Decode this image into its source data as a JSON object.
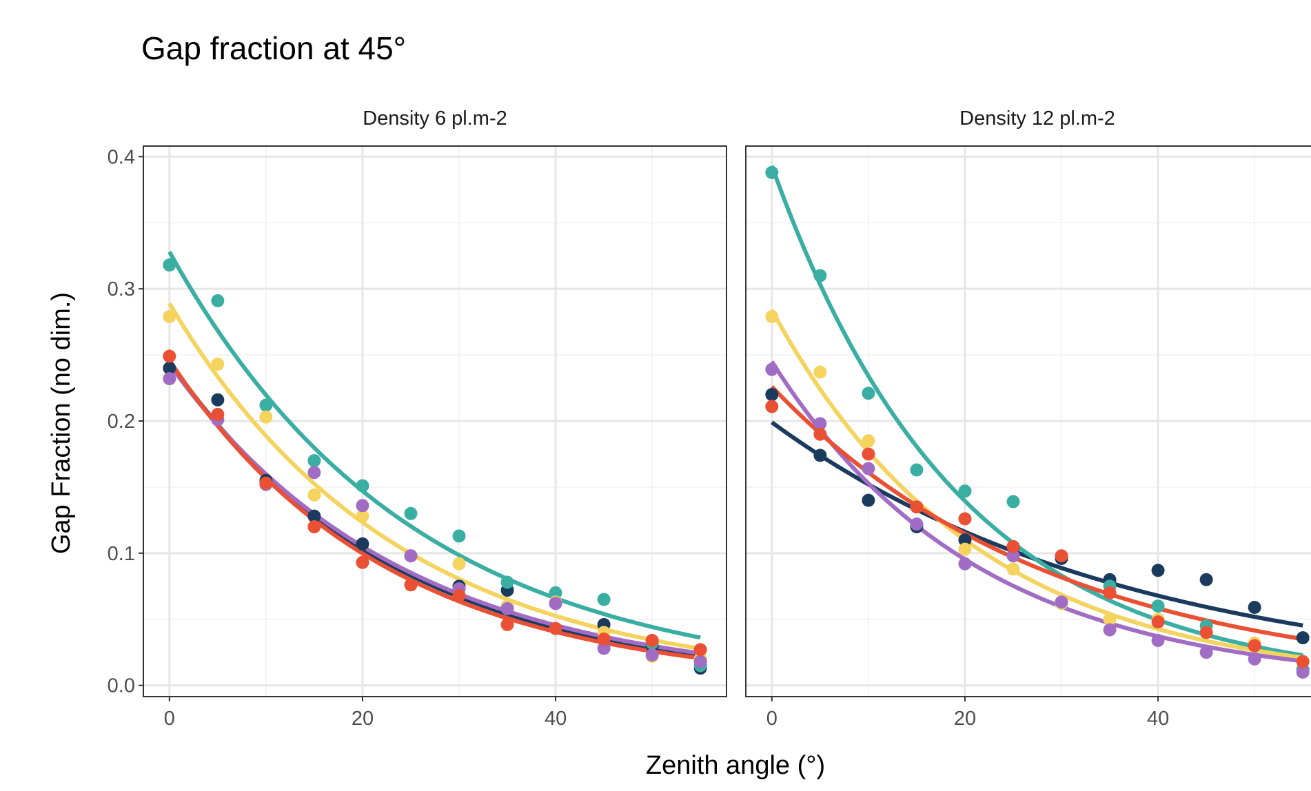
{
  "chart_data": {
    "type": "scatter",
    "title": "Gap fraction at 45°",
    "xlabel": "Zenith angle (°)",
    "ylabel": "Gap Fraction (no dim.)",
    "xlim": [
      -2.7,
      57.7
    ],
    "ylim": [
      -0.0085,
      0.408
    ],
    "x_ticks": [
      "0",
      "20",
      "40"
    ],
    "x_tick_values": [
      0,
      20,
      40
    ],
    "y_ticks": [
      "0.0",
      "0.1",
      "0.2",
      "0.3",
      "0.4"
    ],
    "y_tick_values": [
      0,
      0.1,
      0.2,
      0.3,
      0.4
    ],
    "grid": true,
    "legend": "none",
    "colors": {
      "navy": "#1a3a5e",
      "teal": "#3aaea3",
      "yellow": "#f4d35e",
      "purple": "#a06cc4",
      "red": "#ea5034"
    },
    "panels": [
      {
        "label": "Density 6 pl.m-2",
        "series": [
          {
            "color": "#1a3a5e",
            "points": [
              [
                0,
                0.24
              ],
              [
                5,
                0.216
              ],
              [
                10,
                0.155
              ],
              [
                15,
                0.128
              ],
              [
                20,
                0.107
              ],
              [
                25,
                0.098
              ],
              [
                30,
                0.075
              ],
              [
                35,
                0.072
              ],
              [
                40,
                0.062
              ],
              [
                45,
                0.046
              ],
              [
                50,
                0.03
              ],
              [
                55,
                0.013
              ]
            ],
            "fit": {
              "a": 0.245,
              "b": 0.0432
            }
          },
          {
            "color": "#3aaea3",
            "points": [
              [
                0,
                0.318
              ],
              [
                5,
                0.291
              ],
              [
                10,
                0.212
              ],
              [
                15,
                0.17
              ],
              [
                20,
                0.151
              ],
              [
                25,
                0.13
              ],
              [
                30,
                0.113
              ],
              [
                35,
                0.078
              ],
              [
                40,
                0.07
              ],
              [
                45,
                0.065
              ],
              [
                50,
                0.032
              ],
              [
                55,
                0.015
              ]
            ],
            "fit": {
              "a": 0.328,
              "b": 0.0401
            }
          },
          {
            "color": "#f4d35e",
            "points": [
              [
                0,
                0.279
              ],
              [
                5,
                0.243
              ],
              [
                10,
                0.203
              ],
              [
                15,
                0.144
              ],
              [
                20,
                0.128
              ],
              [
                25,
                0.098
              ],
              [
                30,
                0.092
              ],
              [
                35,
                0.06
              ],
              [
                40,
                0.063
              ],
              [
                45,
                0.04
              ],
              [
                50,
                0.022
              ],
              [
                55,
                0.02
              ]
            ],
            "fit": {
              "a": 0.289,
              "b": 0.0426
            }
          },
          {
            "color": "#a06cc4",
            "points": [
              [
                0,
                0.232
              ],
              [
                5,
                0.201
              ],
              [
                10,
                0.152
              ],
              [
                15,
                0.161
              ],
              [
                20,
                0.136
              ],
              [
                25,
                0.098
              ],
              [
                30,
                0.073
              ],
              [
                35,
                0.058
              ],
              [
                40,
                0.062
              ],
              [
                45,
                0.028
              ],
              [
                50,
                0.023
              ],
              [
                55,
                0.018
              ]
            ],
            "fit": {
              "a": 0.243,
              "b": 0.0419
            }
          },
          {
            "color": "#ea5034",
            "points": [
              [
                0,
                0.249
              ],
              [
                5,
                0.205
              ],
              [
                10,
                0.153
              ],
              [
                15,
                0.12
              ],
              [
                20,
                0.093
              ],
              [
                25,
                0.076
              ],
              [
                30,
                0.068
              ],
              [
                35,
                0.046
              ],
              [
                40,
                0.043
              ],
              [
                45,
                0.035
              ],
              [
                50,
                0.034
              ],
              [
                55,
                0.027
              ]
            ],
            "fit": {
              "a": 0.246,
              "b": 0.0451
            }
          }
        ]
      },
      {
        "label": "Density 12 pl.m-2",
        "series": [
          {
            "color": "#1a3a5e",
            "points": [
              [
                0,
                0.22
              ],
              [
                5,
                0.174
              ],
              [
                10,
                0.14
              ],
              [
                15,
                0.12
              ],
              [
                20,
                0.11
              ],
              [
                25,
                0.104
              ],
              [
                30,
                0.096
              ],
              [
                35,
                0.08
              ],
              [
                40,
                0.087
              ],
              [
                45,
                0.08
              ],
              [
                50,
                0.059
              ],
              [
                55,
                0.036
              ]
            ],
            "fit": {
              "a": 0.199,
              "b": 0.0269
            }
          },
          {
            "color": "#3aaea3",
            "points": [
              [
                0,
                0.388
              ],
              [
                5,
                0.31
              ],
              [
                10,
                0.221
              ],
              [
                15,
                0.163
              ],
              [
                20,
                0.147
              ],
              [
                25,
                0.139
              ],
              [
                30,
                0.063
              ],
              [
                35,
                0.075
              ],
              [
                40,
                0.06
              ],
              [
                45,
                0.045
              ],
              [
                50,
                0.03
              ],
              [
                55,
                0.012
              ]
            ],
            "fit": {
              "a": 0.393,
              "b": 0.0518
            }
          },
          {
            "color": "#f4d35e",
            "points": [
              [
                0,
                0.279
              ],
              [
                5,
                0.237
              ],
              [
                10,
                0.185
              ],
              [
                15,
                0.135
              ],
              [
                20,
                0.103
              ],
              [
                25,
                0.088
              ],
              [
                30,
                0.062
              ],
              [
                35,
                0.05
              ],
              [
                40,
                0.05
              ],
              [
                45,
                0.04
              ],
              [
                50,
                0.032
              ],
              [
                55,
                0.018
              ]
            ],
            "fit": {
              "a": 0.284,
              "b": 0.0474
            }
          },
          {
            "color": "#a06cc4",
            "points": [
              [
                0,
                0.239
              ],
              [
                5,
                0.198
              ],
              [
                10,
                0.164
              ],
              [
                15,
                0.122
              ],
              [
                20,
                0.092
              ],
              [
                25,
                0.098
              ],
              [
                30,
                0.063
              ],
              [
                35,
                0.042
              ],
              [
                40,
                0.034
              ],
              [
                45,
                0.025
              ],
              [
                50,
                0.02
              ],
              [
                55,
                0.01
              ]
            ],
            "fit": {
              "a": 0.245,
              "b": 0.0472
            }
          },
          {
            "color": "#ea5034",
            "points": [
              [
                0,
                0.211
              ],
              [
                5,
                0.19
              ],
              [
                10,
                0.175
              ],
              [
                15,
                0.135
              ],
              [
                20,
                0.126
              ],
              [
                25,
                0.105
              ],
              [
                30,
                0.098
              ],
              [
                35,
                0.07
              ],
              [
                40,
                0.048
              ],
              [
                45,
                0.04
              ],
              [
                50,
                0.03
              ],
              [
                55,
                0.018
              ]
            ],
            "fit": {
              "a": 0.226,
              "b": 0.0339
            }
          }
        ]
      }
    ]
  }
}
